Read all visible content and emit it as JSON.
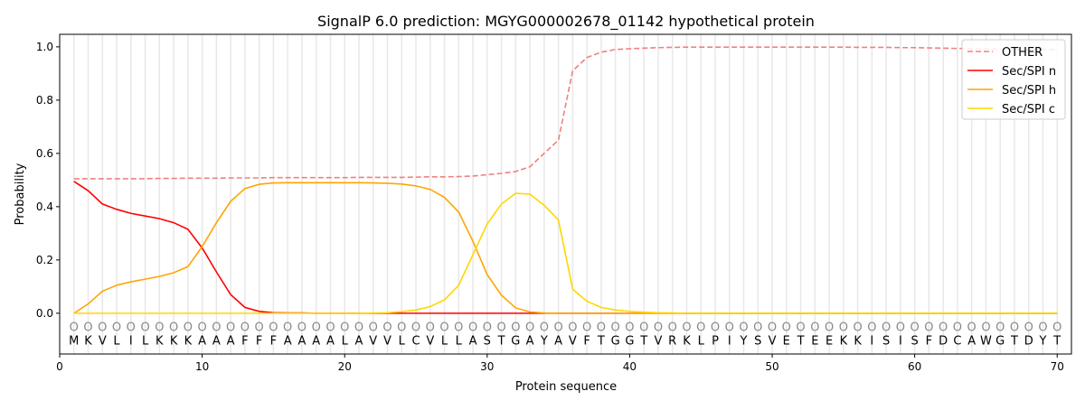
{
  "chart_data": {
    "type": "line",
    "title": "SignalP 6.0 prediction: MGYG000002678_01142 hypothetical protein",
    "xlabel": "Protein sequence",
    "ylabel": "Probability",
    "xlim": [
      0,
      71
    ],
    "ylim": [
      -0.153,
      1.047
    ],
    "xticks": [
      0,
      10,
      20,
      30,
      40,
      50,
      60,
      70
    ],
    "yticks": [
      0.0,
      0.2,
      0.4,
      0.6,
      0.8,
      1.0
    ],
    "ytick_labels": [
      "0.0",
      "0.2",
      "0.4",
      "0.6",
      "0.8",
      "1.0"
    ],
    "grid": "vertical lines at each residue",
    "legend_position": "top-right",
    "sequence": "MKVLILKKKAAAFFFAAAALAVVLCVLLASTGAYAVFTGGTVRKLPIYSVETEEKKISISFDCAWGTDYT",
    "residue_marker": "O",
    "series": [
      {
        "name": "OTHER",
        "color": "#f08080",
        "dash": true,
        "values": [
          0.505,
          0.505,
          0.505,
          0.505,
          0.505,
          0.505,
          0.506,
          0.506,
          0.507,
          0.507,
          0.507,
          0.508,
          0.508,
          0.508,
          0.509,
          0.509,
          0.509,
          0.509,
          0.509,
          0.509,
          0.51,
          0.51,
          0.51,
          0.51,
          0.511,
          0.512,
          0.512,
          0.513,
          0.515,
          0.52,
          0.525,
          0.532,
          0.55,
          0.6,
          0.65,
          0.91,
          0.96,
          0.98,
          0.99,
          0.993,
          0.995,
          0.997,
          0.998,
          0.999,
          0.999,
          0.999,
          0.999,
          0.999,
          0.999,
          0.999,
          0.999,
          0.999,
          0.999,
          0.999,
          0.999,
          0.998,
          0.998,
          0.998,
          0.997,
          0.997,
          0.996,
          0.995,
          0.994,
          0.993,
          0.992,
          0.991,
          0.99,
          0.99,
          0.99,
          0.99
        ]
      },
      {
        "name": "Sec/SPI n",
        "color": "#ff0000",
        "dash": false,
        "values": [
          0.495,
          0.46,
          0.41,
          0.39,
          0.375,
          0.365,
          0.355,
          0.34,
          0.315,
          0.245,
          0.155,
          0.07,
          0.022,
          0.007,
          0.002,
          0.001,
          0.001,
          0,
          0,
          0,
          0,
          0,
          0,
          0,
          0,
          0,
          0,
          0,
          0,
          0,
          0,
          0,
          0,
          0,
          0,
          0,
          0,
          0,
          0,
          0,
          0,
          0,
          0,
          0,
          0,
          0,
          0,
          0,
          0,
          0,
          0,
          0,
          0,
          0,
          0,
          0,
          0,
          0,
          0,
          0,
          0,
          0,
          0,
          0,
          0,
          0,
          0,
          0,
          0,
          0
        ]
      },
      {
        "name": "Sec/SPI h",
        "color": "#ffa500",
        "dash": false,
        "values": [
          0,
          0.035,
          0.083,
          0.105,
          0.118,
          0.128,
          0.138,
          0.152,
          0.175,
          0.25,
          0.34,
          0.42,
          0.468,
          0.484,
          0.489,
          0.49,
          0.49,
          0.49,
          0.49,
          0.49,
          0.49,
          0.489,
          0.488,
          0.485,
          0.478,
          0.465,
          0.435,
          0.38,
          0.27,
          0.145,
          0.068,
          0.02,
          0.005,
          0.001,
          0,
          0,
          0,
          0,
          0,
          0,
          0,
          0,
          0,
          0,
          0,
          0,
          0,
          0,
          0,
          0,
          0,
          0,
          0,
          0,
          0,
          0,
          0,
          0,
          0,
          0,
          0,
          0,
          0,
          0,
          0,
          0,
          0,
          0,
          0,
          0
        ]
      },
      {
        "name": "Sec/SPI c",
        "color": "#ffd700",
        "dash": false,
        "values": [
          0,
          0,
          0,
          0,
          0,
          0,
          0,
          0,
          0,
          0,
          0,
          0,
          0,
          0,
          0,
          0,
          0,
          0,
          0,
          0,
          0,
          0.001,
          0.002,
          0.006,
          0.012,
          0.025,
          0.05,
          0.105,
          0.22,
          0.335,
          0.41,
          0.45,
          0.447,
          0.405,
          0.35,
          0.09,
          0.045,
          0.022,
          0.012,
          0.007,
          0.004,
          0.002,
          0.001,
          0,
          0,
          0,
          0,
          0,
          0,
          0,
          0,
          0,
          0,
          0,
          0,
          0,
          0,
          0,
          0,
          0,
          0,
          0,
          0,
          0,
          0,
          0,
          0,
          0,
          0,
          0
        ]
      }
    ]
  }
}
